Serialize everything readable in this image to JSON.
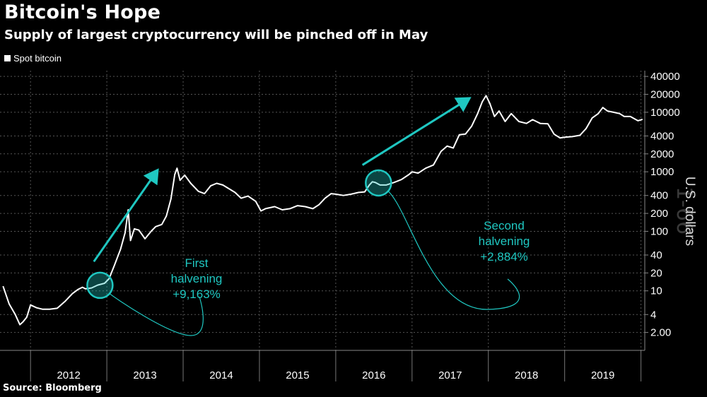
{
  "chart_data": {
    "type": "line",
    "title": "Bitcoin's Hope",
    "subtitle": "Supply of largest cryptocurrency will be pinched off in May",
    "source": "Source: Bloomberg",
    "ylabel": "U.S. dollars",
    "yscale": "log",
    "ylim": [
      1,
      50000
    ],
    "grid": true,
    "legend_position": "top-left",
    "colors": {
      "line": "#ffffff",
      "accent": "#1fc7c1",
      "grid": "#555555"
    },
    "yticks": [
      {
        "value": 2,
        "label": "2.00"
      },
      {
        "value": 4,
        "label": "4"
      },
      {
        "value": 10,
        "label": "10"
      },
      {
        "value": 20,
        "label": "20"
      },
      {
        "value": 40,
        "label": "40"
      },
      {
        "value": 100,
        "label": "100"
      },
      {
        "value": 200,
        "label": "200"
      },
      {
        "value": 400,
        "label": "400"
      },
      {
        "value": 1000,
        "label": "1000"
      },
      {
        "value": 2000,
        "label": "2000"
      },
      {
        "value": 4000,
        "label": "4000"
      },
      {
        "value": 10000,
        "label": "10000"
      },
      {
        "value": 20000,
        "label": "20000"
      },
      {
        "value": 40000,
        "label": "40000"
      }
    ],
    "xticks": [
      {
        "year": 2012,
        "label": "2012"
      },
      {
        "year": 2013,
        "label": "2013"
      },
      {
        "year": 2014,
        "label": "2014"
      },
      {
        "year": 2015,
        "label": "2015"
      },
      {
        "year": 2016,
        "label": "2016"
      },
      {
        "year": 2017,
        "label": "2017"
      },
      {
        "year": 2018,
        "label": "2018"
      },
      {
        "year": 2019,
        "label": "2019"
      }
    ],
    "series": [
      {
        "name": "Spot bitcoin",
        "points": [
          [
            2011.64,
            12
          ],
          [
            2011.72,
            6.0
          ],
          [
            2011.8,
            4.0
          ],
          [
            2011.86,
            2.7
          ],
          [
            2011.9,
            3.0
          ],
          [
            2011.95,
            3.6
          ],
          [
            2012.0,
            5.8
          ],
          [
            2012.08,
            5.2
          ],
          [
            2012.16,
            4.9
          ],
          [
            2012.25,
            4.9
          ],
          [
            2012.35,
            5.1
          ],
          [
            2012.45,
            6.6
          ],
          [
            2012.55,
            9.0
          ],
          [
            2012.62,
            10.5
          ],
          [
            2012.68,
            11.5
          ],
          [
            2012.72,
            10.8
          ],
          [
            2012.8,
            11.2
          ],
          [
            2012.88,
            12.5
          ],
          [
            2012.97,
            13.4
          ],
          [
            2013.03,
            16
          ],
          [
            2013.1,
            27
          ],
          [
            2013.18,
            50
          ],
          [
            2013.24,
            95
          ],
          [
            2013.28,
            230
          ],
          [
            2013.31,
            70
          ],
          [
            2013.36,
            110
          ],
          [
            2013.42,
            105
          ],
          [
            2013.5,
            75
          ],
          [
            2013.58,
            100
          ],
          [
            2013.64,
            120
          ],
          [
            2013.72,
            130
          ],
          [
            2013.78,
            180
          ],
          [
            2013.84,
            350
          ],
          [
            2013.89,
            900
          ],
          [
            2013.92,
            1150
          ],
          [
            2013.96,
            720
          ],
          [
            2014.02,
            880
          ],
          [
            2014.1,
            640
          ],
          [
            2014.2,
            470
          ],
          [
            2014.28,
            430
          ],
          [
            2014.36,
            580
          ],
          [
            2014.44,
            640
          ],
          [
            2014.52,
            600
          ],
          [
            2014.6,
            520
          ],
          [
            2014.68,
            450
          ],
          [
            2014.76,
            360
          ],
          [
            2014.85,
            390
          ],
          [
            2014.95,
            320
          ],
          [
            2015.02,
            220
          ],
          [
            2015.08,
            240
          ],
          [
            2015.2,
            260
          ],
          [
            2015.3,
            230
          ],
          [
            2015.4,
            240
          ],
          [
            2015.5,
            270
          ],
          [
            2015.6,
            260
          ],
          [
            2015.7,
            240
          ],
          [
            2015.78,
            280
          ],
          [
            2015.86,
            360
          ],
          [
            2015.94,
            430
          ],
          [
            2016.0,
            420
          ],
          [
            2016.1,
            400
          ],
          [
            2016.2,
            420
          ],
          [
            2016.3,
            450
          ],
          [
            2016.38,
            460
          ],
          [
            2016.44,
            600
          ],
          [
            2016.48,
            680
          ],
          [
            2016.52,
            660
          ],
          [
            2016.58,
            600
          ],
          [
            2016.66,
            600
          ],
          [
            2016.76,
            660
          ],
          [
            2016.86,
            740
          ],
          [
            2016.96,
            900
          ],
          [
            2017.0,
            1000
          ],
          [
            2017.08,
            950
          ],
          [
            2017.18,
            1150
          ],
          [
            2017.28,
            1300
          ],
          [
            2017.38,
            2200
          ],
          [
            2017.46,
            2700
          ],
          [
            2017.54,
            2500
          ],
          [
            2017.62,
            4200
          ],
          [
            2017.7,
            4300
          ],
          [
            2017.78,
            5800
          ],
          [
            2017.86,
            9500
          ],
          [
            2017.92,
            15000
          ],
          [
            2017.97,
            19000
          ],
          [
            2018.02,
            14000
          ],
          [
            2018.08,
            8500
          ],
          [
            2018.14,
            10500
          ],
          [
            2018.22,
            7000
          ],
          [
            2018.3,
            9500
          ],
          [
            2018.4,
            7000
          ],
          [
            2018.5,
            6500
          ],
          [
            2018.58,
            7500
          ],
          [
            2018.68,
            6500
          ],
          [
            2018.78,
            6400
          ],
          [
            2018.86,
            4300
          ],
          [
            2018.94,
            3700
          ],
          [
            2019.0,
            3800
          ],
          [
            2019.1,
            3900
          ],
          [
            2019.2,
            4100
          ],
          [
            2019.28,
            5300
          ],
          [
            2019.36,
            8000
          ],
          [
            2019.44,
            9500
          ],
          [
            2019.5,
            12000
          ],
          [
            2019.56,
            10500
          ],
          [
            2019.64,
            10000
          ],
          [
            2019.72,
            9500
          ],
          [
            2019.78,
            8500
          ],
          [
            2019.86,
            8500
          ],
          [
            2019.96,
            7200
          ],
          [
            2020.02,
            7600
          ]
        ]
      }
    ],
    "annotations": [
      {
        "kind": "halvening",
        "date": 2012.91,
        "value": 12.4,
        "label_lines": [
          "First",
          "halvening",
          "+9,163%"
        ]
      },
      {
        "kind": "halvening",
        "date": 2016.56,
        "value": 650,
        "label_lines": [
          "Second",
          "halvening",
          "+2,884%"
        ]
      }
    ],
    "trend_arrows": [
      {
        "from": [
          2012.83,
          31
        ],
        "to": [
          2013.65,
          1000
        ]
      },
      {
        "from": [
          2016.35,
          1300
        ],
        "to": [
          2017.73,
          16500
        ]
      }
    ],
    "watermark": "1-66"
  }
}
